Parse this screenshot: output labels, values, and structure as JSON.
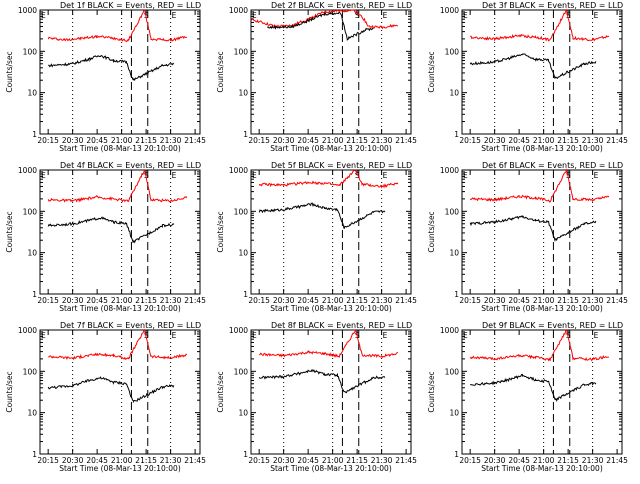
{
  "chart_data": [
    {
      "type": "line",
      "title": "Det 1f BLACK = Events, RED = LLD",
      "xlabel": "Start Time (08-Mar-13 20:10:00)",
      "ylabel": "Counts/sec",
      "y_scale": "log",
      "ylim": [
        1,
        1000
      ],
      "xticks": [
        "20:15",
        "20:30",
        "20:45",
        "21:00",
        "21:15",
        "21:30",
        "21:45"
      ],
      "yticks": [
        "1",
        "10",
        "100",
        "1000"
      ],
      "markers": [
        "E",
        "S",
        "E"
      ],
      "series": [
        {
          "color": "#ff0000",
          "values": [
            {
              "x": "20:15",
              "y": 210
            },
            {
              "x": "20:25",
              "y": 190
            },
            {
              "x": "20:35",
              "y": 205
            },
            {
              "x": "20:45",
              "y": 230
            },
            {
              "x": "20:55",
              "y": 210
            },
            {
              "x": "21:04",
              "y": 180
            },
            {
              "x": "21:14",
              "y": 1000
            },
            {
              "x": "21:18",
              "y": 200
            },
            {
              "x": "21:30",
              "y": 185
            },
            {
              "x": "21:40",
              "y": 230
            }
          ]
        },
        {
          "color": "#000000",
          "values": [
            {
              "x": "20:15",
              "y": 45
            },
            {
              "x": "20:30",
              "y": 50
            },
            {
              "x": "20:40",
              "y": 65
            },
            {
              "x": "20:47",
              "y": 80
            },
            {
              "x": "20:55",
              "y": 60
            },
            {
              "x": "21:03",
              "y": 55
            },
            {
              "x": "21:07",
              "y": 20
            },
            {
              "x": "21:25",
              "y": 45
            },
            {
              "x": "21:32",
              "y": 50
            }
          ]
        }
      ]
    },
    {
      "type": "line",
      "title": "Det 2f BLACK = Events, RED = LLD",
      "xlabel": "Start Time (08-Mar-13 20:10:00)",
      "ylabel": "Counts/sec",
      "y_scale": "log",
      "ylim": [
        1,
        1000
      ],
      "xticks": [
        "20:15",
        "20:30",
        "20:45",
        "21:00",
        "21:15",
        "21:30",
        "21:45"
      ],
      "yticks": [
        "1",
        "10",
        "100",
        "1000"
      ],
      "markers": [
        "E",
        "S",
        "E"
      ],
      "series": [
        {
          "color": "#ff0000",
          "values": [
            {
              "x": "20:10",
              "y": 600
            },
            {
              "x": "20:25",
              "y": 400
            },
            {
              "x": "20:35",
              "y": 420
            },
            {
              "x": "20:45",
              "y": 600
            },
            {
              "x": "20:55",
              "y": 900
            },
            {
              "x": "21:05",
              "y": 950
            },
            {
              "x": "21:12",
              "y": 1000
            },
            {
              "x": "21:18",
              "y": 700
            },
            {
              "x": "21:22",
              "y": 400
            },
            {
              "x": "21:30",
              "y": 380
            },
            {
              "x": "21:40",
              "y": 430
            }
          ]
        },
        {
          "color": "#000000",
          "values": [
            {
              "x": "20:20",
              "y": 380
            },
            {
              "x": "20:35",
              "y": 390
            },
            {
              "x": "20:45",
              "y": 550
            },
            {
              "x": "20:55",
              "y": 800
            },
            {
              "x": "21:05",
              "y": 850
            },
            {
              "x": "21:09",
              "y": 200
            },
            {
              "x": "21:20",
              "y": 330
            },
            {
              "x": "21:25",
              "y": 360
            }
          ]
        }
      ]
    },
    {
      "type": "line",
      "title": "Det 3f BLACK = Events, RED = LLD",
      "xlabel": "Start Time (08-Mar-13 20:10:00)",
      "ylabel": "Counts/sec",
      "y_scale": "log",
      "ylim": [
        1,
        1000
      ],
      "xticks": [
        "20:15",
        "20:30",
        "20:45",
        "21:00",
        "21:15",
        "21:30",
        "21:45"
      ],
      "yticks": [
        "1",
        "10",
        "100",
        "1000"
      ],
      "markers": [
        "E",
        "S",
        "E"
      ],
      "series": [
        {
          "color": "#ff0000",
          "values": [
            {
              "x": "20:15",
              "y": 220
            },
            {
              "x": "20:30",
              "y": 200
            },
            {
              "x": "20:45",
              "y": 240
            },
            {
              "x": "20:55",
              "y": 220
            },
            {
              "x": "21:04",
              "y": 190
            },
            {
              "x": "21:14",
              "y": 1000
            },
            {
              "x": "21:18",
              "y": 210
            },
            {
              "x": "21:30",
              "y": 190
            },
            {
              "x": "21:40",
              "y": 230
            }
          ]
        },
        {
          "color": "#000000",
          "values": [
            {
              "x": "20:15",
              "y": 50
            },
            {
              "x": "20:30",
              "y": 55
            },
            {
              "x": "20:40",
              "y": 70
            },
            {
              "x": "20:47",
              "y": 85
            },
            {
              "x": "20:55",
              "y": 65
            },
            {
              "x": "21:03",
              "y": 60
            },
            {
              "x": "21:07",
              "y": 22
            },
            {
              "x": "21:25",
              "y": 50
            },
            {
              "x": "21:32",
              "y": 55
            }
          ]
        }
      ]
    },
    {
      "type": "line",
      "title": "Det 4f BLACK = Events, RED = LLD",
      "xlabel": "Start Time (08-Mar-13 20:10:00)",
      "ylabel": "Counts/sec",
      "y_scale": "log",
      "ylim": [
        1,
        1000
      ],
      "xticks": [
        "20:15",
        "20:30",
        "20:45",
        "21:00",
        "21:15",
        "21:30",
        "21:45"
      ],
      "yticks": [
        "1",
        "10",
        "100",
        "1000"
      ],
      "markers": [
        "E",
        "S",
        "E"
      ],
      "series": [
        {
          "color": "#ff0000",
          "values": [
            {
              "x": "20:15",
              "y": 190
            },
            {
              "x": "20:30",
              "y": 180
            },
            {
              "x": "20:45",
              "y": 220
            },
            {
              "x": "20:55",
              "y": 200
            },
            {
              "x": "21:04",
              "y": 175
            },
            {
              "x": "21:14",
              "y": 1000
            },
            {
              "x": "21:18",
              "y": 190
            },
            {
              "x": "21:30",
              "y": 180
            },
            {
              "x": "21:40",
              "y": 215
            }
          ]
        },
        {
          "color": "#000000",
          "values": [
            {
              "x": "20:15",
              "y": 45
            },
            {
              "x": "20:30",
              "y": 50
            },
            {
              "x": "20:40",
              "y": 60
            },
            {
              "x": "20:47",
              "y": 70
            },
            {
              "x": "20:55",
              "y": 55
            },
            {
              "x": "21:03",
              "y": 50
            },
            {
              "x": "21:07",
              "y": 18
            },
            {
              "x": "21:25",
              "y": 45
            },
            {
              "x": "21:32",
              "y": 48
            }
          ]
        }
      ]
    },
    {
      "type": "line",
      "title": "Det 5f BLACK = Events, RED = LLD",
      "xlabel": "Start Time (08-Mar-13 20:10:00)",
      "ylabel": "Counts/sec",
      "y_scale": "log",
      "ylim": [
        1,
        1000
      ],
      "xticks": [
        "20:15",
        "20:30",
        "20:45",
        "21:00",
        "21:15",
        "21:30",
        "21:45"
      ],
      "yticks": [
        "1",
        "10",
        "100",
        "1000"
      ],
      "markers": [
        "E",
        "S",
        "E"
      ],
      "series": [
        {
          "color": "#ff0000",
          "values": [
            {
              "x": "20:15",
              "y": 450
            },
            {
              "x": "20:30",
              "y": 430
            },
            {
              "x": "20:45",
              "y": 500
            },
            {
              "x": "20:55",
              "y": 480
            },
            {
              "x": "21:04",
              "y": 420
            },
            {
              "x": "21:14",
              "y": 1000
            },
            {
              "x": "21:18",
              "y": 450
            },
            {
              "x": "21:30",
              "y": 400
            },
            {
              "x": "21:40",
              "y": 480
            }
          ]
        },
        {
          "color": "#000000",
          "values": [
            {
              "x": "20:15",
              "y": 100
            },
            {
              "x": "20:30",
              "y": 110
            },
            {
              "x": "20:40",
              "y": 130
            },
            {
              "x": "20:47",
              "y": 150
            },
            {
              "x": "20:55",
              "y": 120
            },
            {
              "x": "21:03",
              "y": 110
            },
            {
              "x": "21:07",
              "y": 40
            },
            {
              "x": "21:25",
              "y": 95
            },
            {
              "x": "21:32",
              "y": 100
            }
          ]
        }
      ]
    },
    {
      "type": "line",
      "title": "Det 6f BLACK = Events, RED = LLD",
      "xlabel": "Start Time (08-Mar-13 20:10:00)",
      "ylabel": "Counts/sec",
      "y_scale": "log",
      "ylim": [
        1,
        1000
      ],
      "xticks": [
        "20:15",
        "20:30",
        "20:45",
        "21:00",
        "21:15",
        "21:30",
        "21:45"
      ],
      "yticks": [
        "1",
        "10",
        "100",
        "1000"
      ],
      "markers": [
        "E",
        "S",
        "E"
      ],
      "series": [
        {
          "color": "#ff0000",
          "values": [
            {
              "x": "20:15",
              "y": 200
            },
            {
              "x": "20:30",
              "y": 190
            },
            {
              "x": "20:45",
              "y": 230
            },
            {
              "x": "20:55",
              "y": 210
            },
            {
              "x": "21:04",
              "y": 180
            },
            {
              "x": "21:14",
              "y": 1000
            },
            {
              "x": "21:18",
              "y": 200
            },
            {
              "x": "21:30",
              "y": 190
            },
            {
              "x": "21:40",
              "y": 225
            }
          ]
        },
        {
          "color": "#000000",
          "values": [
            {
              "x": "20:15",
              "y": 50
            },
            {
              "x": "20:30",
              "y": 55
            },
            {
              "x": "20:40",
              "y": 65
            },
            {
              "x": "20:47",
              "y": 75
            },
            {
              "x": "20:55",
              "y": 60
            },
            {
              "x": "21:03",
              "y": 55
            },
            {
              "x": "21:07",
              "y": 20
            },
            {
              "x": "21:25",
              "y": 50
            },
            {
              "x": "21:32",
              "y": 55
            }
          ]
        }
      ]
    },
    {
      "type": "line",
      "title": "Det 7f BLACK = Events, RED = LLD",
      "xlabel": "Start Time (08-Mar-13 20:10:00)",
      "ylabel": "Counts/sec",
      "y_scale": "log",
      "ylim": [
        1,
        1000
      ],
      "xticks": [
        "20:15",
        "20:30",
        "20:45",
        "21:00",
        "21:15",
        "21:30",
        "21:45"
      ],
      "yticks": [
        "1",
        "10",
        "100",
        "1000"
      ],
      "markers": [
        "E",
        "S",
        "E"
      ],
      "series": [
        {
          "color": "#ff0000",
          "values": [
            {
              "x": "20:15",
              "y": 230
            },
            {
              "x": "20:30",
              "y": 210
            },
            {
              "x": "20:45",
              "y": 260
            },
            {
              "x": "20:55",
              "y": 240
            },
            {
              "x": "21:04",
              "y": 200
            },
            {
              "x": "21:14",
              "y": 1000
            },
            {
              "x": "21:18",
              "y": 230
            },
            {
              "x": "21:30",
              "y": 210
            },
            {
              "x": "21:40",
              "y": 250
            }
          ]
        },
        {
          "color": "#000000",
          "values": [
            {
              "x": "20:15",
              "y": 40
            },
            {
              "x": "20:30",
              "y": 45
            },
            {
              "x": "20:40",
              "y": 60
            },
            {
              "x": "20:47",
              "y": 70
            },
            {
              "x": "20:55",
              "y": 55
            },
            {
              "x": "21:03",
              "y": 50
            },
            {
              "x": "21:07",
              "y": 18
            },
            {
              "x": "21:25",
              "y": 42
            },
            {
              "x": "21:32",
              "y": 45
            }
          ]
        }
      ]
    },
    {
      "type": "line",
      "title": "Det 8f BLACK = Events, RED = LLD",
      "xlabel": "Start Time (08-Mar-13 20:10:00)",
      "ylabel": "Counts/sec",
      "y_scale": "log",
      "ylim": [
        1,
        1000
      ],
      "xticks": [
        "20:15",
        "20:30",
        "20:45",
        "21:00",
        "21:15",
        "21:30",
        "21:45"
      ],
      "yticks": [
        "1",
        "10",
        "100",
        "1000"
      ],
      "markers": [
        "E",
        "S",
        "E"
      ],
      "series": [
        {
          "color": "#ff0000",
          "values": [
            {
              "x": "20:15",
              "y": 260
            },
            {
              "x": "20:30",
              "y": 240
            },
            {
              "x": "20:45",
              "y": 290
            },
            {
              "x": "20:55",
              "y": 270
            },
            {
              "x": "21:04",
              "y": 230
            },
            {
              "x": "21:14",
              "y": 1000
            },
            {
              "x": "21:18",
              "y": 250
            },
            {
              "x": "21:30",
              "y": 230
            },
            {
              "x": "21:40",
              "y": 270
            }
          ]
        },
        {
          "color": "#000000",
          "values": [
            {
              "x": "20:15",
              "y": 70
            },
            {
              "x": "20:30",
              "y": 75
            },
            {
              "x": "20:40",
              "y": 90
            },
            {
              "x": "20:47",
              "y": 105
            },
            {
              "x": "20:55",
              "y": 85
            },
            {
              "x": "21:03",
              "y": 80
            },
            {
              "x": "21:07",
              "y": 30
            },
            {
              "x": "21:25",
              "y": 70
            },
            {
              "x": "21:32",
              "y": 72
            }
          ]
        }
      ]
    },
    {
      "type": "line",
      "title": "Det 9f BLACK = Events, RED = LLD",
      "xlabel": "Start Time (08-Mar-13 20:10:00)",
      "ylabel": "Counts/sec",
      "y_scale": "log",
      "ylim": [
        1,
        1000
      ],
      "xticks": [
        "20:15",
        "20:30",
        "20:45",
        "21:00",
        "21:15",
        "21:30",
        "21:45"
      ],
      "yticks": [
        "1",
        "10",
        "100",
        "1000"
      ],
      "markers": [
        "E",
        "S",
        "E"
      ],
      "series": [
        {
          "color": "#ff0000",
          "values": [
            {
              "x": "20:15",
              "y": 220
            },
            {
              "x": "20:30",
              "y": 200
            },
            {
              "x": "20:45",
              "y": 240
            },
            {
              "x": "20:55",
              "y": 220
            },
            {
              "x": "21:04",
              "y": 190
            },
            {
              "x": "21:14",
              "y": 1000
            },
            {
              "x": "21:18",
              "y": 210
            },
            {
              "x": "21:30",
              "y": 195
            },
            {
              "x": "21:40",
              "y": 235
            }
          ]
        },
        {
          "color": "#000000",
          "values": [
            {
              "x": "20:15",
              "y": 48
            },
            {
              "x": "20:30",
              "y": 52
            },
            {
              "x": "20:40",
              "y": 65
            },
            {
              "x": "20:47",
              "y": 80
            },
            {
              "x": "20:55",
              "y": 62
            },
            {
              "x": "21:03",
              "y": 58
            },
            {
              "x": "21:07",
              "y": 20
            },
            {
              "x": "21:25",
              "y": 48
            },
            {
              "x": "21:32",
              "y": 52
            }
          ]
        }
      ]
    }
  ]
}
